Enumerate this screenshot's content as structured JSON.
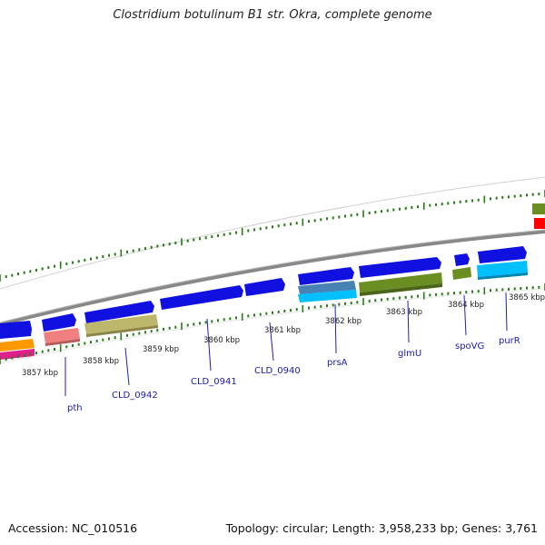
{
  "title": "Clostridium botulinum B1 str. Okra, complete genome",
  "footer": {
    "accession": "Accession: NC_010516",
    "topology": "Topology: circular; Length: 3,958,233 bp; Genes: 3,761"
  },
  "kbp_labels": [
    "3857 kbp",
    "3858 kbp",
    "3859 kbp",
    "3860 kbp",
    "3861 kbp",
    "3862 kbp",
    "3863 kbp",
    "3864 kbp",
    "3865 kbp"
  ],
  "gene_labels": [
    "pth",
    "CLD_0942",
    "CLD_0941",
    "CLD_0940",
    "prsA",
    "glmU",
    "spoVG",
    "purR"
  ],
  "colors": {
    "backbone": "#808080",
    "gene_forward": "#1010e0",
    "tick": "#2a7a1a",
    "label_text": "#1a1aa8"
  }
}
